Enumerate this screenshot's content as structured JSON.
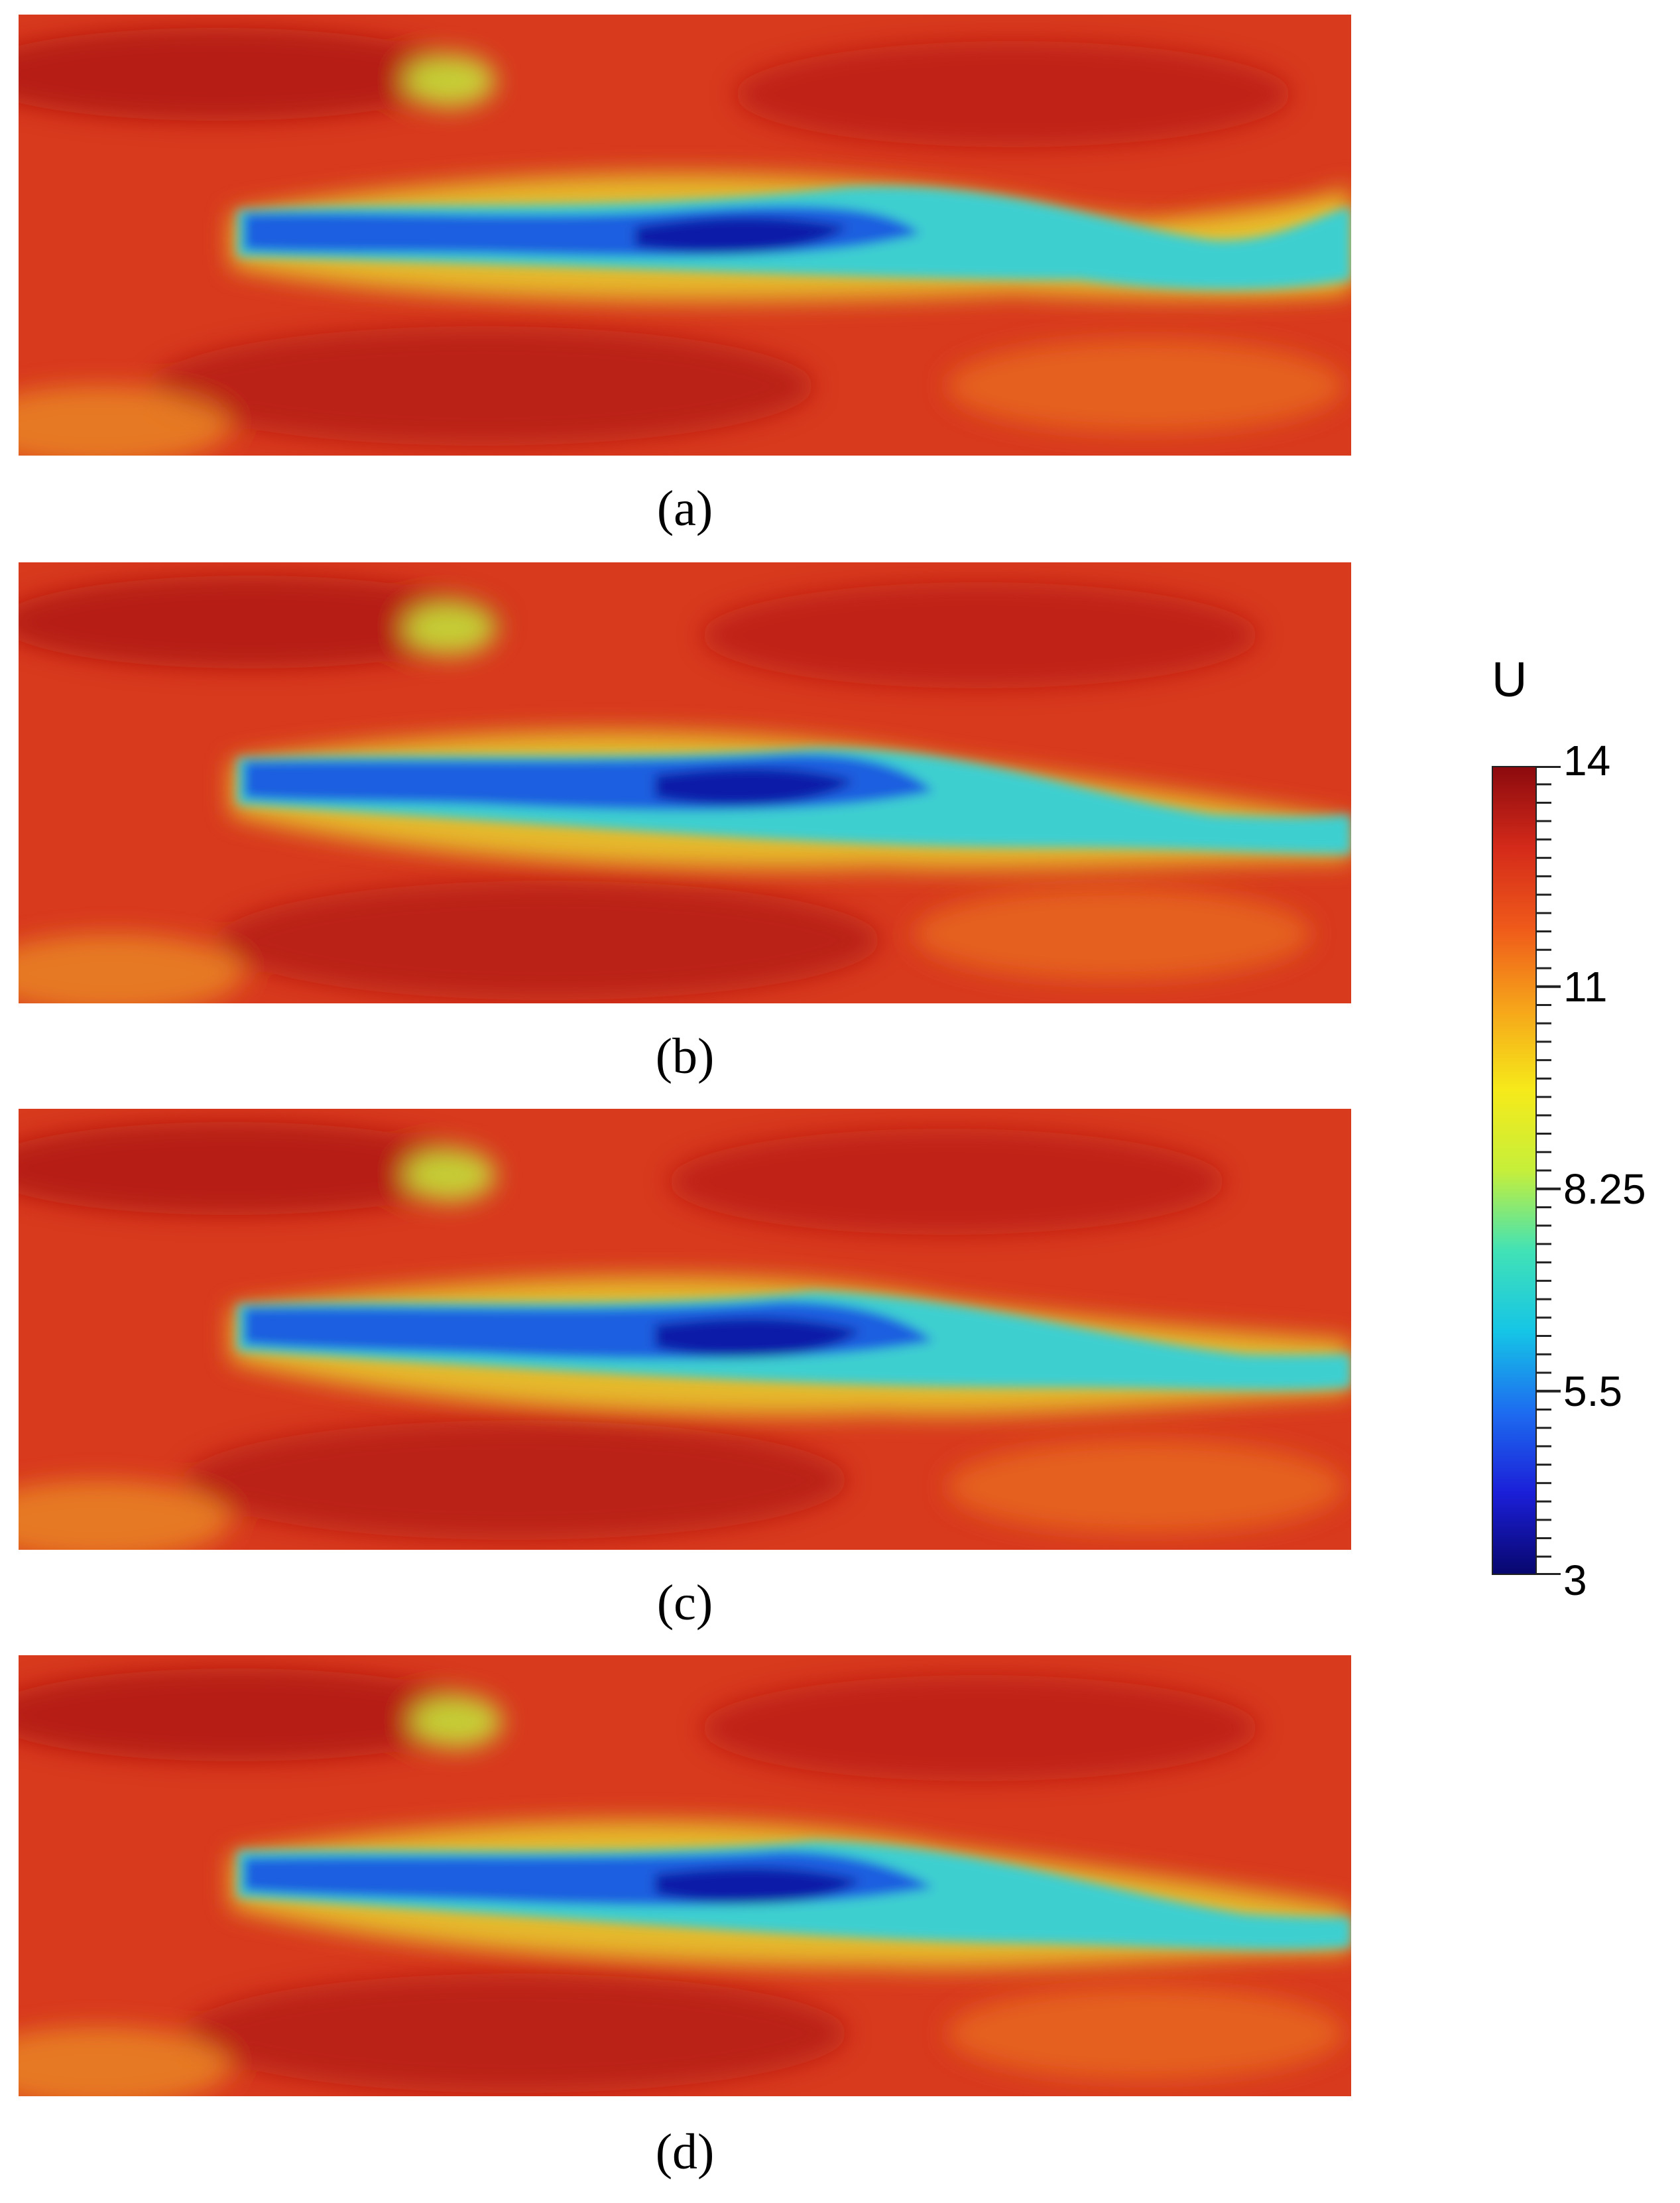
{
  "panels": [
    {
      "caption": "(a)"
    },
    {
      "caption": "(b)"
    },
    {
      "caption": "(c)"
    },
    {
      "caption": "(d)"
    }
  ],
  "colorbar": {
    "title": "U",
    "min": 3,
    "max": 14,
    "tick_labels": [
      "14",
      "11",
      "8.25",
      "5.5",
      "3"
    ],
    "tick_values": [
      14,
      11,
      8.25,
      5.5,
      3
    ],
    "minor_ticks": 44,
    "colormap": [
      "#08076e",
      "#1b1fd8",
      "#1d6cf0",
      "#15c5e6",
      "#41e2b6",
      "#c6ef3a",
      "#f6ea1a",
      "#f6a51a",
      "#ef5a1a",
      "#d42a1a",
      "#8c0a0e"
    ]
  },
  "colors": {
    "field_background": "#d8361e",
    "wake_core": "#1f5fe0",
    "wake_edge": "#3ccfd0",
    "shear_layer": "#e4e02a",
    "high_speed": "#a8140f"
  }
}
